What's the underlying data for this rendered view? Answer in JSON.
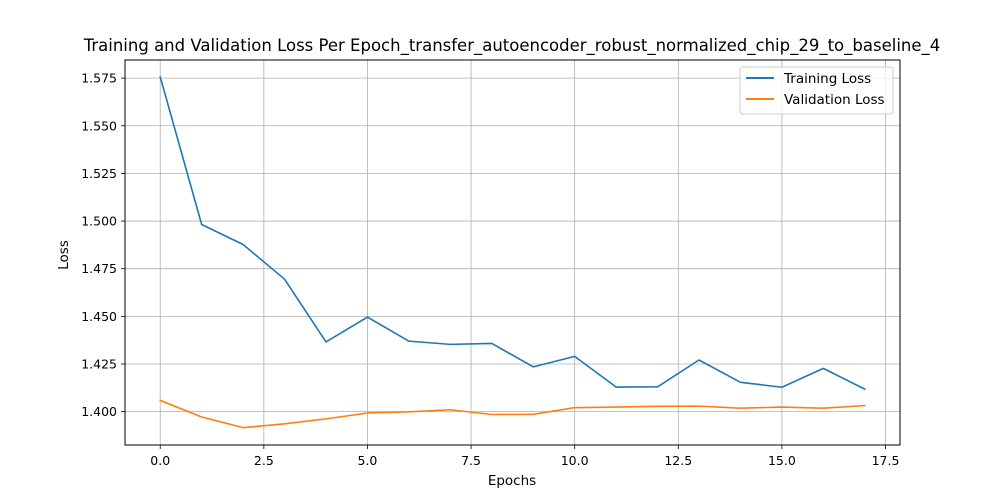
{
  "chart_data": {
    "type": "line",
    "title": "Training and Validation Loss Per Epoch_transfer_autoencoder_robust_normalized_chip_29_to_baseline_4",
    "xlabel": "Epochs",
    "ylabel": "Loss",
    "xlim": [
      -0.85,
      17.85
    ],
    "ylim": [
      1.3825,
      1.5845
    ],
    "xticks": [
      0.0,
      2.5,
      5.0,
      7.5,
      10.0,
      12.5,
      15.0,
      17.5
    ],
    "xtick_labels": [
      "0.0",
      "2.5",
      "5.0",
      "7.5",
      "10.0",
      "12.5",
      "15.0",
      "17.5"
    ],
    "yticks": [
      1.4,
      1.425,
      1.45,
      1.475,
      1.5,
      1.525,
      1.55,
      1.575
    ],
    "ytick_labels": [
      "1.400",
      "1.425",
      "1.450",
      "1.475",
      "1.500",
      "1.525",
      "1.550",
      "1.575"
    ],
    "grid": true,
    "legend_position": "top-right",
    "x": [
      0,
      1,
      2,
      3,
      4,
      5,
      6,
      7,
      8,
      9,
      10,
      11,
      12,
      13,
      14,
      15,
      16,
      17
    ],
    "series": [
      {
        "name": "Training Loss",
        "color": "#1f77b4",
        "values": [
          1.5756,
          1.4982,
          1.4877,
          1.4695,
          1.4366,
          1.4496,
          1.437,
          1.4353,
          1.4358,
          1.4235,
          1.429,
          1.4129,
          1.413,
          1.4271,
          1.4154,
          1.4128,
          1.4227,
          1.4118
        ]
      },
      {
        "name": "Validation Loss",
        "color": "#ff7f0e",
        "values": [
          1.4059,
          1.3972,
          1.3916,
          1.3936,
          1.3962,
          1.3993,
          1.3999,
          1.401,
          1.3985,
          1.3986,
          1.4021,
          1.4024,
          1.4028,
          1.4029,
          1.4018,
          1.4024,
          1.4018,
          1.4032
        ]
      }
    ]
  }
}
